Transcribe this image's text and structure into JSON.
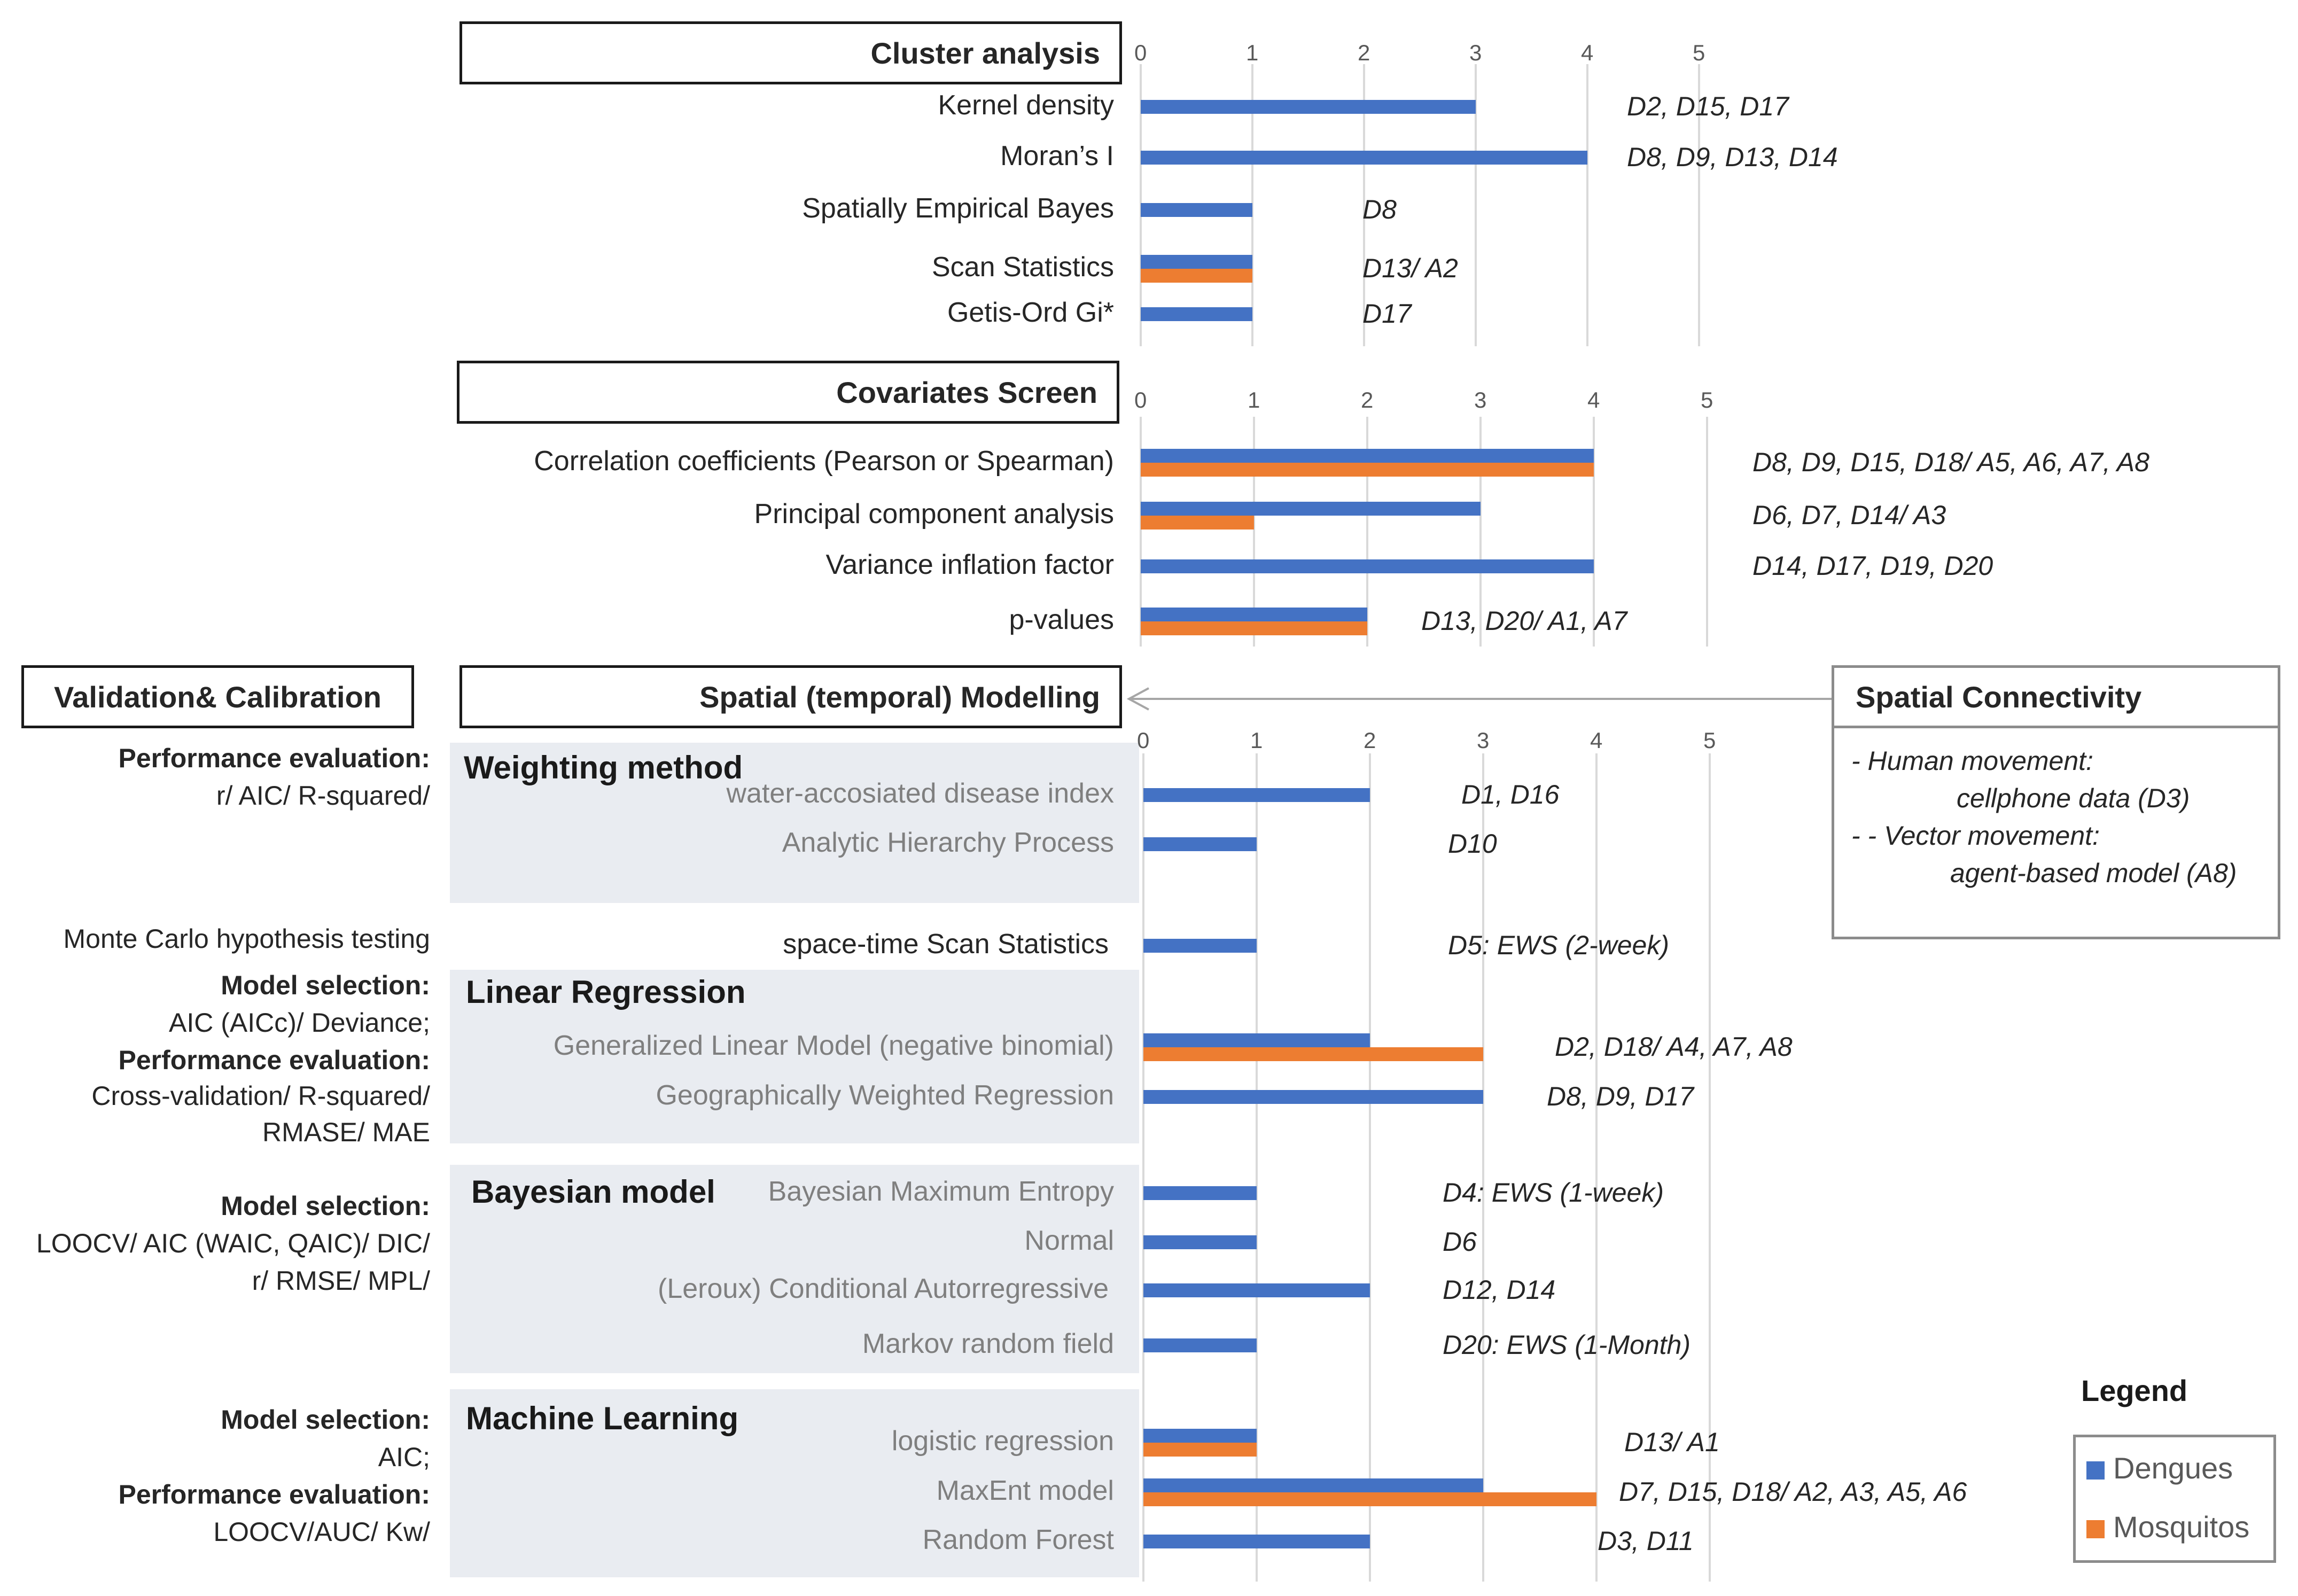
{
  "colors": {
    "dengue": "#4472c4",
    "mosquito": "#ed7d31",
    "grid": "#d9d9d9",
    "panel": "#e9ecf1"
  },
  "sections": {
    "cluster": "Cluster analysis",
    "covariates": "Covariates Screen",
    "validation": "Validation& Calibration",
    "spatial": "Spatial (temporal) Modelling",
    "connectivity": "Spatial Connectivity"
  },
  "groups": {
    "weighting": "Weighting method",
    "linear": "Linear Regression",
    "bayesian": "Bayesian model",
    "ml": "Machine Learning"
  },
  "validation_notes": {
    "weighting_1": "Performance evaluation:",
    "weighting_2": "r/ AIC/ R-squared/",
    "monte": "Monte Carlo hypothesis testing",
    "linear_1": "Model selection:",
    "linear_2": "AIC (AICc)/ Deviance;",
    "linear_3": "Performance evaluation:",
    "linear_4": "Cross-validation/ R-squared/",
    "linear_5": "RMASE/ MAE",
    "bayes_1": "Model selection:",
    "bayes_2": "LOOCV/ AIC (WAIC, QAIC)/ DIC/",
    "bayes_3": "r/ RMSE/ MPL/",
    "ml_1": "Model selection:",
    "ml_2": "AIC;",
    "ml_3": "Performance evaluation:",
    "ml_4": "LOOCV/AUC/ Kw/"
  },
  "connectivity": {
    "line1": "-    Human movement:",
    "line2": "cellphone data (D3)",
    "line3": "-    - Vector movement:",
    "line4": "agent-based model (A8)"
  },
  "legend": {
    "title": "Legend",
    "dengue": "Dengues",
    "mosquito": "Mosquitos"
  },
  "chart_data": [
    {
      "type": "bar",
      "title": "Cluster analysis",
      "xlim": [
        0,
        5
      ],
      "ticks": [
        "0",
        "1",
        "2",
        "3",
        "4",
        "5"
      ],
      "categories": [
        "Kernel density",
        "Moran’s I",
        "Spatially Empirical Bayes",
        "Scan Statistics",
        "Getis-Ord Gi*"
      ],
      "series": [
        {
          "name": "Dengues",
          "values": [
            3,
            4,
            1,
            1,
            1
          ]
        },
        {
          "name": "Mosquitos",
          "values": [
            0,
            0,
            0,
            1,
            0
          ]
        }
      ],
      "annotations": [
        "D2, D15, D17",
        "D8, D9, D13, D14",
        "D8",
        "D13/ A2",
        "D17"
      ]
    },
    {
      "type": "bar",
      "title": "Covariates Screen",
      "xlim": [
        0,
        5
      ],
      "ticks": [
        "0",
        "1",
        "2",
        "3",
        "4",
        "5"
      ],
      "categories": [
        "Correlation coefficients (Pearson or Spearman)",
        "Principal component analysis",
        "Variance inflation factor",
        "p-values"
      ],
      "series": [
        {
          "name": "Dengues",
          "values": [
            4,
            3,
            4,
            2
          ]
        },
        {
          "name": "Mosquitos",
          "values": [
            4,
            1,
            0,
            2
          ]
        }
      ],
      "annotations": [
        "D8, D9, D15, D18/ A5, A6, A7, A8",
        "D6, D7, D14/ A3",
        "D14, D17, D19, D20",
        "D13, D20/ A1, A7"
      ]
    },
    {
      "type": "bar",
      "title": "Spatial (temporal) Modelling",
      "xlim": [
        0,
        5
      ],
      "ticks": [
        "0",
        "1",
        "2",
        "3",
        "4",
        "5"
      ],
      "categories": [
        "water-accosiated disease index",
        "Analytic Hierarchy Process",
        "space-time Scan Statistics",
        "Generalized Linear Model (negative binomial)",
        "Geographically Weighted Regression",
        "Bayesian Maximum Entropy",
        "Normal",
        "(Leroux) Conditional Autorregressive",
        "Markov random field",
        "logistic regression",
        "MaxEnt model",
        "Random Forest"
      ],
      "series": [
        {
          "name": "Dengues",
          "values": [
            2,
            1,
            1,
            2,
            3,
            1,
            1,
            2,
            1,
            1,
            3,
            2
          ]
        },
        {
          "name": "Mosquitos",
          "values": [
            0,
            0,
            0,
            3,
            0,
            0,
            0,
            0,
            0,
            1,
            4,
            0
          ]
        }
      ],
      "annotations": [
        "D1, D16",
        "D10",
        "D5: EWS (2-week)",
        "D2, D18/ A4, A7, A8",
        "D8, D9, D17",
        "D4: EWS (1-week)",
        "D6",
        "D12, D14",
        "D20: EWS (1-Month)",
        "D13/ A1",
        "D7, D15, D18/ A2, A3, A5, A6",
        "D3, D11"
      ]
    }
  ]
}
